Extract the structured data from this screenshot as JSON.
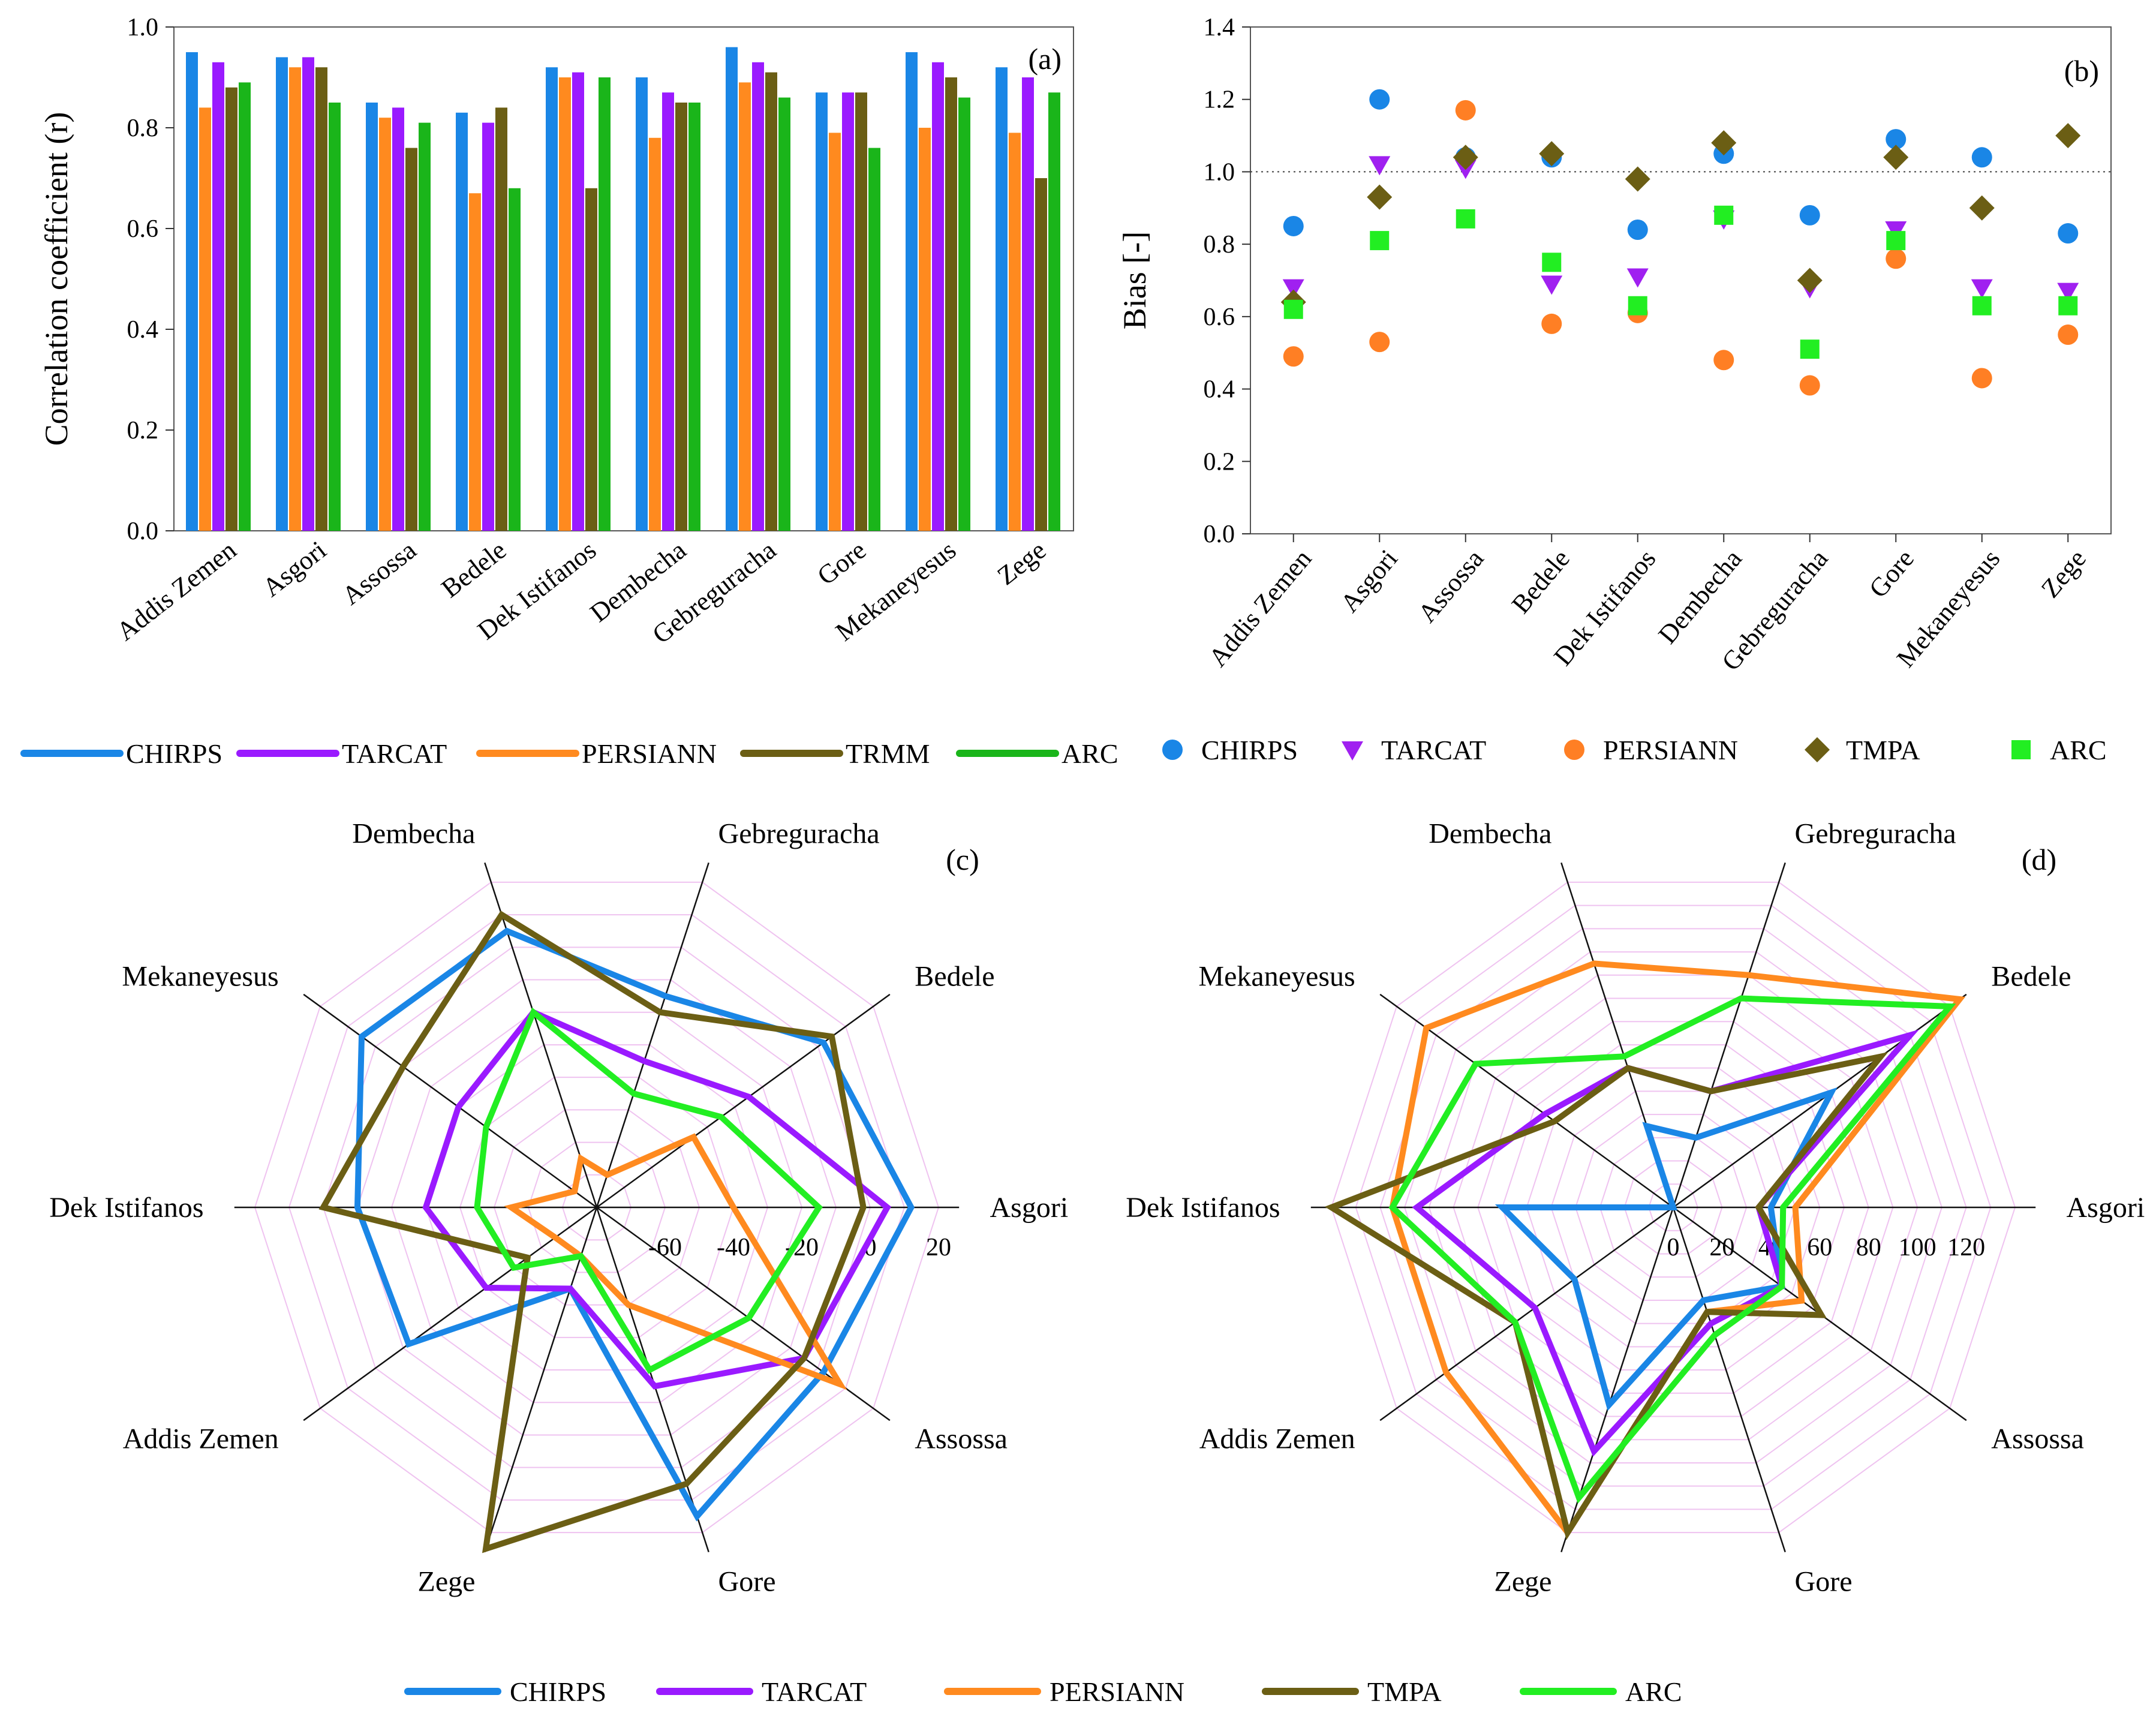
{
  "chart_data": [
    {
      "id": "a",
      "type": "bar",
      "panel_label": "(a)",
      "ylabel": "Correlation coefficient (r)",
      "ylim": [
        0,
        1.0
      ],
      "yticks": [
        "0.0",
        "0.2",
        "0.4",
        "0.6",
        "0.8",
        "1.0"
      ],
      "categories": [
        "Addis Zemen",
        "Asgori",
        "Assossa",
        "Bedele",
        "Dek Istifanos",
        "Dembecha",
        "Gebreguracha",
        "Gore",
        "Mekaneyesus",
        "Zege"
      ],
      "series": [
        {
          "name": "CHIRPS",
          "color": "#1a86e6",
          "values": [
            0.95,
            0.94,
            0.85,
            0.83,
            0.92,
            0.9,
            0.96,
            0.87,
            0.95,
            0.92
          ]
        },
        {
          "name": "PERSIANN",
          "color": "#ff8a1f",
          "values": [
            0.84,
            0.92,
            0.82,
            0.67,
            0.9,
            0.78,
            0.89,
            0.79,
            0.8,
            0.79
          ]
        },
        {
          "name": "TARCAT",
          "color": "#9a1aff",
          "values": [
            0.93,
            0.94,
            0.84,
            0.81,
            0.91,
            0.87,
            0.93,
            0.87,
            0.93,
            0.9
          ]
        },
        {
          "name": "TRMM",
          "color": "#6b5e14",
          "values": [
            0.88,
            0.92,
            0.76,
            0.84,
            0.68,
            0.85,
            0.91,
            0.87,
            0.9,
            0.7
          ]
        },
        {
          "name": "ARC",
          "color": "#1ab51a",
          "values": [
            0.89,
            0.85,
            0.81,
            0.68,
            0.9,
            0.85,
            0.86,
            0.76,
            0.86,
            0.87
          ]
        }
      ],
      "legend": [
        "CHIRPS",
        "TARCAT",
        "PERSIANN",
        "TRMM",
        "ARC"
      ]
    },
    {
      "id": "b",
      "type": "scatter",
      "panel_label": "(b)",
      "ylabel": "Bias [-]",
      "ylim": [
        0,
        1.4
      ],
      "yticks": [
        "0.0",
        "0.2",
        "0.4",
        "0.6",
        "0.8",
        "1.0",
        "1.2",
        "1.4"
      ],
      "reference_line": 1.0,
      "categories": [
        "Addis Zemen",
        "Asgori",
        "Assossa",
        "Bedele",
        "Dek Istifanos",
        "Dembecha",
        "Gebreguracha",
        "Gore",
        "Mekaneyesus",
        "Zege"
      ],
      "series": [
        {
          "name": "CHIRPS",
          "marker": "circle",
          "color": "#1a86e6",
          "values": [
            0.85,
            1.2,
            1.04,
            1.04,
            0.84,
            1.05,
            0.88,
            1.09,
            1.04,
            0.83
          ]
        },
        {
          "name": "TARCAT",
          "marker": "triangle-down",
          "color": "#a020f0",
          "values": [
            0.68,
            1.02,
            1.01,
            0.69,
            0.71,
            0.87,
            0.68,
            0.84,
            0.68,
            0.67
          ]
        },
        {
          "name": "PERSIANN",
          "marker": "circle",
          "color": "#ff7f24",
          "values": [
            0.49,
            0.53,
            1.17,
            0.58,
            0.61,
            0.48,
            0.41,
            0.76,
            0.43,
            0.55
          ]
        },
        {
          "name": "TMPA",
          "marker": "diamond",
          "color": "#6b5e14",
          "values": [
            0.64,
            0.93,
            1.04,
            1.05,
            0.98,
            1.08,
            0.7,
            1.04,
            0.9,
            1.1
          ]
        },
        {
          "name": "ARC",
          "marker": "square",
          "color": "#22ee22",
          "values": [
            0.62,
            0.81,
            0.87,
            0.75,
            0.63,
            0.88,
            0.51,
            0.81,
            0.63,
            0.63
          ]
        }
      ],
      "legend": [
        "CHIRPS",
        "TARCAT",
        "PERSIANN",
        "TMPA",
        "ARC"
      ]
    },
    {
      "id": "c",
      "type": "radar",
      "panel_label": "(c)",
      "axes": [
        "Asgori",
        "Bedele",
        "Gebreguracha",
        "Dembecha",
        "Mekaneyesus",
        "Dek Istifanos",
        "Addis Zemen",
        "Zege",
        "Gore",
        "Assossa"
      ],
      "range": [
        -80,
        20
      ],
      "tick_labels": [
        "-60",
        "-40",
        "-20",
        "0",
        "20"
      ],
      "series": [
        {
          "name": "CHIRPS",
          "color": "#1a86e6",
          "values": [
            12,
            2,
            -15,
            5,
            5,
            -10,
            -12,
            -55,
            15,
            2
          ]
        },
        {
          "name": "TARCAT",
          "color": "#9a1aff",
          "values": [
            5,
            -25,
            -35,
            -20,
            -30,
            -30,
            -40,
            -55,
            -25,
            -5
          ]
        },
        {
          "name": "PERSIANN",
          "color": "#ff8a1f",
          "values": [
            -40,
            -45,
            -70,
            -65,
            -72,
            -55,
            -65,
            -65,
            -50,
            8
          ]
        },
        {
          "name": "TMPA",
          "color": "#6b5e14",
          "values": [
            -2,
            5,
            -20,
            10,
            -10,
            0,
            -55,
            25,
            5,
            -5
          ]
        },
        {
          "name": "ARC",
          "color": "#22ee22",
          "values": [
            -15,
            -35,
            -45,
            -20,
            -40,
            -45,
            -50,
            -65,
            -30,
            -25
          ]
        }
      ],
      "legend": [
        "CHIRPS",
        "TARCAT",
        "PERSIANN",
        "TMPA",
        "ARC"
      ]
    },
    {
      "id": "d",
      "type": "radar",
      "panel_label": "(d)",
      "axes": [
        "Asgori",
        "Bedele",
        "Gebreguracha",
        "Dembecha",
        "Mekaneyesus",
        "Dek Istifanos",
        "Addis Zemen",
        "Zege",
        "Gore",
        "Assossa"
      ],
      "range": [
        0,
        140
      ],
      "tick_labels": [
        "0",
        "20",
        "40",
        "60",
        "80",
        "100",
        "120"
      ],
      "series": [
        {
          "name": "CHIRPS",
          "color": "#1a86e6",
          "values": [
            40,
            80,
            30,
            35,
            0,
            70,
            50,
            85,
            40,
            55
          ]
        },
        {
          "name": "TARCAT",
          "color": "#9a1aff",
          "values": [
            35,
            120,
            50,
            60,
            65,
            105,
            70,
            105,
            50,
            55
          ]
        },
        {
          "name": "PERSIANN",
          "color": "#ff8a1f",
          "values": [
            50,
            145,
            100,
            105,
            125,
            115,
            115,
            140,
            45,
            65
          ]
        },
        {
          "name": "TMPA",
          "color": "#6b5e14",
          "values": [
            35,
            105,
            50,
            60,
            60,
            140,
            80,
            140,
            45,
            75
          ]
        },
        {
          "name": "ARC",
          "color": "#22ee22",
          "values": [
            45,
            140,
            90,
            65,
            100,
            115,
            80,
            125,
            55,
            55
          ]
        }
      ],
      "legend": [
        "CHIRPS",
        "TARCAT",
        "PERSIANN",
        "TMPA",
        "ARC"
      ]
    }
  ]
}
